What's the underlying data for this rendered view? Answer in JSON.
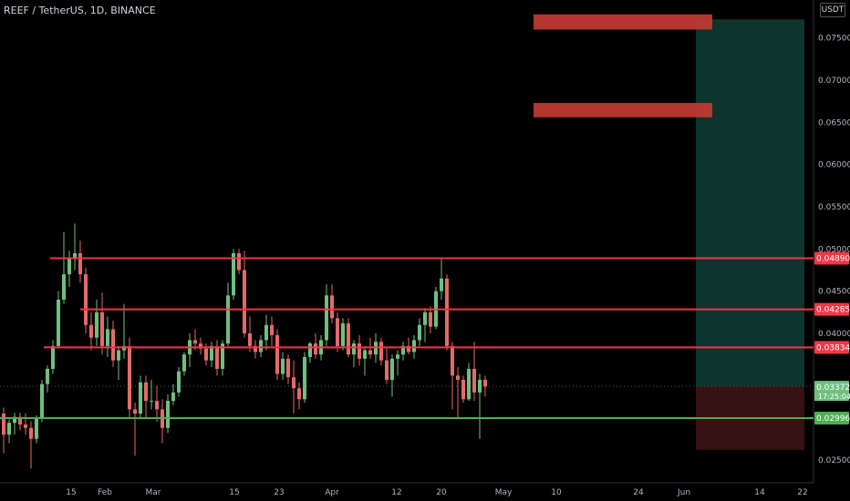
{
  "header": {
    "title": "REEF / TetherUS, 1D, BINANCE",
    "currency": "USDT"
  },
  "colors": {
    "background": "#000000",
    "up": "#6fbf7f",
    "down": "#e46a6a",
    "resistance": "#f23645",
    "support": "#4caf50",
    "target_zone": "#0f3d37",
    "stop_zone": "#3d1414",
    "target_box": "#c23a32"
  },
  "chart_data": {
    "type": "candlestick",
    "title": "REEF / TetherUS, 1D, BINANCE",
    "yaxis_ticks": [
      "0.075000",
      "0.070000",
      "0.065000",
      "0.060000",
      "0.055000",
      "0.050000",
      "0.045000",
      "0.040000",
      "0.035000",
      "0.030000",
      "0.025000"
    ],
    "ylim": [
      0.0223,
      0.0795
    ],
    "xaxis_ticks": [
      "15",
      "Feb",
      "Mar",
      "15",
      "23",
      "Apr",
      "12",
      "20",
      "May",
      "10",
      "24",
      "Jun",
      "14",
      "22"
    ],
    "ohlc": [
      [
        0.0305,
        0.0312,
        0.0258,
        0.028
      ],
      [
        0.028,
        0.0298,
        0.027,
        0.0294
      ],
      [
        0.0294,
        0.0306,
        0.028,
        0.0301
      ],
      [
        0.0301,
        0.0306,
        0.0285,
        0.0292
      ],
      [
        0.0292,
        0.0305,
        0.028,
        0.0288
      ],
      [
        0.0288,
        0.0296,
        0.024,
        0.0275
      ],
      [
        0.0275,
        0.0303,
        0.027,
        0.03
      ],
      [
        0.03,
        0.0345,
        0.0295,
        0.034
      ],
      [
        0.034,
        0.0362,
        0.033,
        0.0358
      ],
      [
        0.0358,
        0.0392,
        0.0352,
        0.0385
      ],
      [
        0.0385,
        0.045,
        0.0382,
        0.044
      ],
      [
        0.044,
        0.052,
        0.0435,
        0.047
      ],
      [
        0.047,
        0.0498,
        0.0455,
        0.049
      ],
      [
        0.049,
        0.053,
        0.0475,
        0.0495
      ],
      [
        0.0495,
        0.051,
        0.046,
        0.047
      ],
      [
        0.047,
        0.0478,
        0.04,
        0.041
      ],
      [
        0.041,
        0.0425,
        0.038,
        0.0395
      ],
      [
        0.0395,
        0.044,
        0.0385,
        0.0425
      ],
      [
        0.0425,
        0.0448,
        0.0375,
        0.0385
      ],
      [
        0.0385,
        0.042,
        0.0372,
        0.0405
      ],
      [
        0.0405,
        0.0415,
        0.036,
        0.0368
      ],
      [
        0.0368,
        0.0385,
        0.0345,
        0.038
      ],
      [
        0.038,
        0.0435,
        0.037,
        0.0385
      ],
      [
        0.0385,
        0.0395,
        0.03,
        0.031
      ],
      [
        0.031,
        0.0318,
        0.0255,
        0.0305
      ],
      [
        0.0305,
        0.035,
        0.03,
        0.0342
      ],
      [
        0.0342,
        0.035,
        0.03,
        0.032
      ],
      [
        0.032,
        0.0345,
        0.031,
        0.032
      ],
      [
        0.032,
        0.0338,
        0.0295,
        0.031
      ],
      [
        0.031,
        0.0322,
        0.027,
        0.0288
      ],
      [
        0.0288,
        0.0328,
        0.0282,
        0.032
      ],
      [
        0.032,
        0.034,
        0.0315,
        0.033
      ],
      [
        0.033,
        0.036,
        0.0325,
        0.0355
      ],
      [
        0.0355,
        0.0378,
        0.035,
        0.0375
      ],
      [
        0.0375,
        0.04,
        0.036,
        0.0392
      ],
      [
        0.0392,
        0.0405,
        0.038,
        0.0388
      ],
      [
        0.0388,
        0.0395,
        0.0375,
        0.0382
      ],
      [
        0.0382,
        0.0388,
        0.0362,
        0.0368
      ],
      [
        0.0368,
        0.039,
        0.036,
        0.0385
      ],
      [
        0.0385,
        0.0392,
        0.035,
        0.0358
      ],
      [
        0.0358,
        0.0392,
        0.035,
        0.0388
      ],
      [
        0.0388,
        0.046,
        0.0385,
        0.0445
      ],
      [
        0.0445,
        0.05,
        0.044,
        0.0495
      ],
      [
        0.0495,
        0.05,
        0.047,
        0.0475
      ],
      [
        0.0475,
        0.0498,
        0.0395,
        0.04
      ],
      [
        0.04,
        0.042,
        0.0378,
        0.0385
      ],
      [
        0.0385,
        0.0392,
        0.037,
        0.0378
      ],
      [
        0.0378,
        0.0398,
        0.0372,
        0.0392
      ],
      [
        0.0392,
        0.0422,
        0.038,
        0.041
      ],
      [
        0.041,
        0.042,
        0.0385,
        0.0398
      ],
      [
        0.0398,
        0.0405,
        0.0345,
        0.0352
      ],
      [
        0.0352,
        0.0378,
        0.0345,
        0.037
      ],
      [
        0.037,
        0.0375,
        0.034,
        0.0348
      ],
      [
        0.0348,
        0.0368,
        0.0305,
        0.0335
      ],
      [
        0.0335,
        0.0342,
        0.031,
        0.0322
      ],
      [
        0.0322,
        0.0378,
        0.0318,
        0.0372
      ],
      [
        0.0372,
        0.039,
        0.0365,
        0.0388
      ],
      [
        0.0388,
        0.04,
        0.037,
        0.0375
      ],
      [
        0.0375,
        0.0398,
        0.0368,
        0.0392
      ],
      [
        0.0392,
        0.0458,
        0.0385,
        0.0445
      ],
      [
        0.0445,
        0.0458,
        0.0412,
        0.0418
      ],
      [
        0.0418,
        0.0425,
        0.0378,
        0.0385
      ],
      [
        0.0385,
        0.0418,
        0.038,
        0.0412
      ],
      [
        0.0412,
        0.0418,
        0.0372,
        0.0375
      ],
      [
        0.0375,
        0.0392,
        0.036,
        0.0388
      ],
      [
        0.0388,
        0.0398,
        0.0362,
        0.037
      ],
      [
        0.037,
        0.0385,
        0.035,
        0.038
      ],
      [
        0.038,
        0.0395,
        0.037,
        0.0375
      ],
      [
        0.0375,
        0.04,
        0.0365,
        0.039
      ],
      [
        0.039,
        0.0395,
        0.0362,
        0.0368
      ],
      [
        0.0368,
        0.0382,
        0.034,
        0.0345
      ],
      [
        0.0345,
        0.0375,
        0.0325,
        0.037
      ],
      [
        0.037,
        0.038,
        0.035,
        0.0375
      ],
      [
        0.0375,
        0.039,
        0.0368,
        0.0385
      ],
      [
        0.0385,
        0.0395,
        0.0375,
        0.0378
      ],
      [
        0.0378,
        0.0398,
        0.037,
        0.0392
      ],
      [
        0.0392,
        0.0418,
        0.0385,
        0.041
      ],
      [
        0.041,
        0.043,
        0.039,
        0.0425
      ],
      [
        0.0425,
        0.0432,
        0.04,
        0.0408
      ],
      [
        0.0408,
        0.0455,
        0.0405,
        0.045
      ],
      [
        0.045,
        0.049,
        0.044,
        0.0465
      ],
      [
        0.0465,
        0.047,
        0.038,
        0.0385
      ],
      [
        0.0385,
        0.039,
        0.031,
        0.035
      ],
      [
        0.035,
        0.036,
        0.03,
        0.0345
      ],
      [
        0.0345,
        0.035,
        0.0318,
        0.0322
      ],
      [
        0.0322,
        0.0365,
        0.032,
        0.0358
      ],
      [
        0.0358,
        0.039,
        0.032,
        0.033
      ],
      [
        0.033,
        0.0352,
        0.0275,
        0.0345
      ],
      [
        0.0345,
        0.035,
        0.0325,
        0.0337
      ]
    ],
    "levels": [
      {
        "price": 0.0489,
        "label": "0.048900",
        "kind": "resistance"
      },
      {
        "price": 0.04285,
        "label": "0.042850",
        "kind": "resistance"
      },
      {
        "price": 0.038344,
        "label": "0.038344",
        "kind": "resistance"
      },
      {
        "price": 0.029967,
        "label": "0.029967",
        "kind": "support"
      }
    ],
    "last_price": {
      "price": 0.03372,
      "label": "0.033720",
      "countdown": "17:25:04"
    },
    "position": {
      "entry": 0.03372,
      "target": 0.0772,
      "stop": 0.0262
    },
    "target_boxes": [
      {
        "top": 0.0778,
        "bottom": 0.076
      },
      {
        "top": 0.0673,
        "bottom": 0.0656
      }
    ]
  }
}
